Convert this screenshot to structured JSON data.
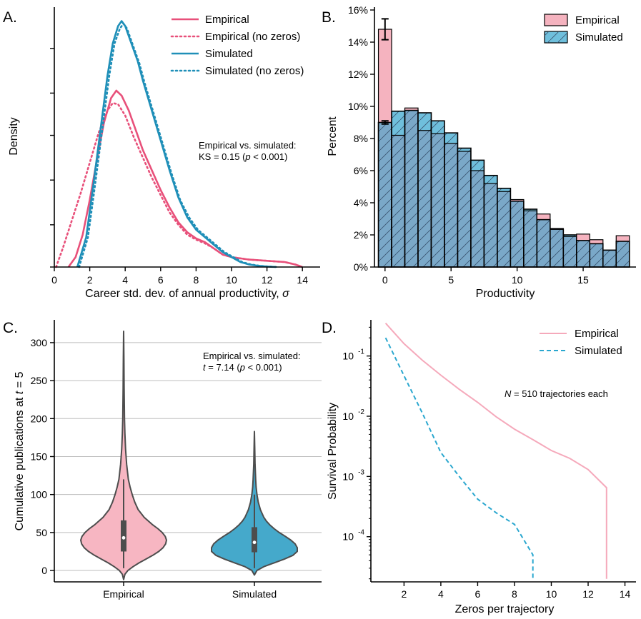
{
  "colors": {
    "empirical_line": "#e8507a",
    "simulated_line": "#1f8fb8",
    "empirical_fill": "#f7b6c2",
    "simulated_fill": "#45a9cb",
    "hist_empirical": "#f5b3bf",
    "hist_simulated": "#6fbfdc",
    "hist_overlap": "#7aa8c8",
    "survival_empirical": "#f5a9bb",
    "survival_simulated": "#2aa7cf"
  },
  "chart_data": [
    {
      "panel": "A.",
      "type": "line",
      "title": "",
      "xlabel_main": "Career std. dev. of annual productivity, ",
      "xlabel_symbol": "σ",
      "ylabel": "Density",
      "xlim": [
        0,
        15
      ],
      "ylim": [
        0,
        1.0
      ],
      "xticks": [
        "0",
        "2",
        "4",
        "6",
        "8",
        "10",
        "12",
        "14"
      ],
      "xtick_values": [
        0,
        2,
        4,
        6,
        8,
        10,
        12,
        14
      ],
      "ytick_values": [
        0,
        0.17,
        0.35,
        0.53,
        0.7,
        0.88
      ],
      "annotation_line1": "Empirical vs. simulated:",
      "annotation_line2_a": "KS = 0.15 (",
      "annotation_line2_p": "p",
      "annotation_line2_b": " < 0.001)",
      "series": [
        {
          "name": "Empirical",
          "style": "solid",
          "color_key": "empirical_line",
          "x": [
            0.8,
            1.2,
            1.6,
            2.0,
            2.4,
            2.8,
            3.2,
            3.5,
            3.8,
            4.2,
            4.6,
            5.0,
            5.5,
            6.0,
            6.5,
            7.0,
            7.5,
            8.0,
            8.5,
            9.0,
            9.5,
            10.0,
            11.0,
            12.0,
            13.0,
            13.6,
            14.0
          ],
          "y": [
            0.0,
            0.04,
            0.13,
            0.27,
            0.43,
            0.58,
            0.68,
            0.71,
            0.69,
            0.63,
            0.55,
            0.47,
            0.39,
            0.31,
            0.24,
            0.18,
            0.14,
            0.115,
            0.1,
            0.075,
            0.05,
            0.04,
            0.03,
            0.025,
            0.02,
            0.01,
            0.0
          ]
        },
        {
          "name": "Empirical (no zeros)",
          "style": "dotted",
          "color_key": "empirical_line",
          "x": [
            0.1,
            0.5,
            1.0,
            1.5,
            2.0,
            2.5,
            3.0,
            3.3,
            3.6,
            4.0,
            4.5,
            5.0,
            5.5,
            6.0,
            6.5,
            7.0,
            7.5,
            8.0,
            8.5,
            9.0,
            9.5,
            10.0,
            11.0,
            12.0,
            13.0,
            13.6,
            14.0
          ],
          "y": [
            0.0,
            0.08,
            0.19,
            0.3,
            0.42,
            0.54,
            0.63,
            0.66,
            0.655,
            0.61,
            0.52,
            0.44,
            0.36,
            0.29,
            0.22,
            0.17,
            0.13,
            0.11,
            0.095,
            0.075,
            0.05,
            0.04,
            0.03,
            0.025,
            0.02,
            0.01,
            0.0
          ]
        },
        {
          "name": "Simulated",
          "style": "solid",
          "color_key": "simulated_line",
          "x": [
            1.3,
            1.8,
            2.2,
            2.6,
            3.0,
            3.3,
            3.6,
            3.8,
            4.0,
            4.3,
            4.7,
            5.0,
            5.5,
            6.0,
            6.5,
            7.0,
            7.5,
            8.0,
            8.5,
            9.0,
            9.5,
            10.0,
            10.5,
            11.0,
            11.5,
            12.0,
            12.5
          ],
          "y": [
            0.0,
            0.12,
            0.33,
            0.55,
            0.77,
            0.9,
            0.97,
            0.99,
            0.97,
            0.91,
            0.83,
            0.75,
            0.63,
            0.51,
            0.39,
            0.28,
            0.2,
            0.15,
            0.12,
            0.09,
            0.06,
            0.04,
            0.02,
            0.01,
            0.005,
            0.002,
            0.0
          ]
        },
        {
          "name": "Simulated (no zeros)",
          "style": "dotted",
          "color_key": "simulated_line",
          "x": [
            1.4,
            1.9,
            2.3,
            2.7,
            3.1,
            3.4,
            3.7,
            3.9,
            4.1,
            4.4,
            4.8,
            5.1,
            5.6,
            6.1,
            6.6,
            7.1,
            7.6,
            8.1,
            8.6,
            9.1,
            9.6,
            10.1,
            10.6,
            11.1,
            11.6,
            12.1,
            12.6
          ],
          "y": [
            0.0,
            0.12,
            0.33,
            0.55,
            0.77,
            0.9,
            0.96,
            0.98,
            0.96,
            0.9,
            0.82,
            0.74,
            0.62,
            0.5,
            0.38,
            0.27,
            0.2,
            0.15,
            0.12,
            0.09,
            0.06,
            0.04,
            0.02,
            0.01,
            0.005,
            0.002,
            0.0
          ]
        }
      ]
    },
    {
      "panel": "B.",
      "type": "bar",
      "title": "",
      "xlabel": "Productivity",
      "ylabel": "Percent",
      "xlim": [
        -0.8,
        19
      ],
      "ylim": [
        0,
        16
      ],
      "xticks": [
        "0",
        "5",
        "10",
        "15"
      ],
      "xtick_values": [
        0,
        5,
        10,
        15
      ],
      "yticks": [
        "0%",
        "2%",
        "4%",
        "6%",
        "8%",
        "10%",
        "12%",
        "14%",
        "16%"
      ],
      "ytick_values": [
        0,
        2,
        4,
        6,
        8,
        10,
        12,
        14,
        16
      ],
      "categories": [
        0,
        1,
        2,
        3,
        4,
        5,
        6,
        7,
        8,
        9,
        10,
        11,
        12,
        13,
        14,
        15,
        16,
        17,
        18
      ],
      "series": [
        {
          "name": "Empirical",
          "color_key": "hist_empirical",
          "values": [
            14.8,
            8.2,
            9.9,
            8.5,
            8.3,
            7.7,
            7.2,
            6.0,
            5.2,
            4.7,
            4.2,
            3.5,
            3.3,
            2.4,
            1.9,
            2.05,
            1.7,
            1.05,
            1.95
          ]
        },
        {
          "name": "Simulated",
          "color_key": "hist_simulated",
          "values": [
            9.0,
            9.7,
            9.75,
            9.6,
            9.1,
            8.35,
            7.4,
            6.65,
            5.7,
            4.9,
            4.1,
            3.6,
            2.95,
            2.35,
            2.0,
            1.65,
            1.45,
            1.05,
            1.6
          ]
        }
      ],
      "error_bars": [
        {
          "category": 0,
          "value": 14.8,
          "low": 14.15,
          "high": 15.45
        },
        {
          "category": 0,
          "value": 9.0,
          "low": 8.9,
          "high": 9.1
        }
      ]
    },
    {
      "panel": "C.",
      "type": "violin",
      "title": "",
      "xlabel": "",
      "ylabel_main": "Cumulative publications at ",
      "ylabel_symbol": "t",
      "ylabel_end": " = 5",
      "ylim": [
        -15,
        330
      ],
      "yticks": [
        "0",
        "50",
        "100",
        "150",
        "200",
        "250",
        "300"
      ],
      "ytick_values": [
        0,
        50,
        100,
        150,
        200,
        250,
        300
      ],
      "categories": [
        "Empirical",
        "Simulated"
      ],
      "annotation_line1": "Empirical vs. simulated:",
      "annotation_line2_t": "t",
      "annotation_line2_a": " = 7.14 (",
      "annotation_line2_p": "p",
      "annotation_line2_b": " < 0.001)",
      "violins": [
        {
          "name": "Empirical",
          "color_key": "empirical_fill",
          "median": 43,
          "q1": 25,
          "q3": 66,
          "whisker_low": 3,
          "whisker_high": 120,
          "profile_y": [
            -12,
            -5,
            0,
            5,
            10,
            15,
            20,
            25,
            30,
            35,
            40,
            45,
            50,
            55,
            60,
            70,
            80,
            90,
            100,
            110,
            120,
            140,
            160,
            180,
            200,
            240,
            280,
            315
          ],
          "profile_w": [
            0,
            0.03,
            0.1,
            0.22,
            0.36,
            0.52,
            0.68,
            0.82,
            0.92,
            0.98,
            1.0,
            0.97,
            0.9,
            0.8,
            0.68,
            0.48,
            0.34,
            0.26,
            0.2,
            0.15,
            0.11,
            0.07,
            0.045,
            0.03,
            0.02,
            0.012,
            0.006,
            0
          ]
        },
        {
          "name": "Simulated",
          "color_key": "simulated_fill",
          "median": 37,
          "q1": 24,
          "q3": 57,
          "whisker_low": 3,
          "whisker_high": 100,
          "profile_y": [
            -6,
            0,
            5,
            10,
            15,
            20,
            25,
            30,
            35,
            40,
            45,
            50,
            55,
            60,
            65,
            70,
            80,
            90,
            100,
            110,
            120,
            140,
            160,
            183
          ],
          "profile_w": [
            0,
            0.06,
            0.22,
            0.46,
            0.7,
            0.9,
            1.0,
            1.0,
            0.95,
            0.85,
            0.72,
            0.58,
            0.46,
            0.36,
            0.28,
            0.22,
            0.14,
            0.09,
            0.06,
            0.04,
            0.03,
            0.015,
            0.008,
            0
          ]
        }
      ]
    },
    {
      "panel": "D.",
      "type": "line",
      "scale_y": "log",
      "title": "",
      "xlabel": "Zeros per trajectory",
      "ylabel": "Survival Probability",
      "xlim": [
        0.2,
        14.6
      ],
      "ylim_log10": [
        -4.75,
        -0.4
      ],
      "xticks": [
        "2",
        "4",
        "6",
        "8",
        "10",
        "12",
        "14"
      ],
      "xtick_values": [
        2,
        4,
        6,
        8,
        10,
        12,
        14
      ],
      "ytick_exponents": [
        -1,
        -2,
        -3,
        -4
      ],
      "ytick_base": "10",
      "annotation_N": "N",
      "annotation_rest": " = 510 trajectories each",
      "series": [
        {
          "name": "Empirical",
          "style": "solid",
          "color_key": "survival_empirical",
          "x": [
            1,
            2,
            3,
            4,
            5,
            6,
            7,
            8,
            9,
            10,
            11,
            12,
            13,
            13,
            13
          ],
          "y": [
            0.35,
            0.16,
            0.085,
            0.048,
            0.028,
            0.017,
            0.0098,
            0.0061,
            0.0041,
            0.0027,
            0.002,
            0.0013,
            0.00065,
            0.00065,
            2e-05
          ]
        },
        {
          "name": "Simulated",
          "style": "dashed",
          "color_key": "survival_simulated",
          "x": [
            1,
            2,
            3,
            4,
            5,
            6,
            7,
            8,
            9,
            9
          ],
          "y": [
            0.2,
            0.047,
            0.0112,
            0.0025,
            0.001,
            0.00042,
            0.00025,
            0.00016,
            5e-05,
            2e-05
          ]
        }
      ]
    }
  ]
}
